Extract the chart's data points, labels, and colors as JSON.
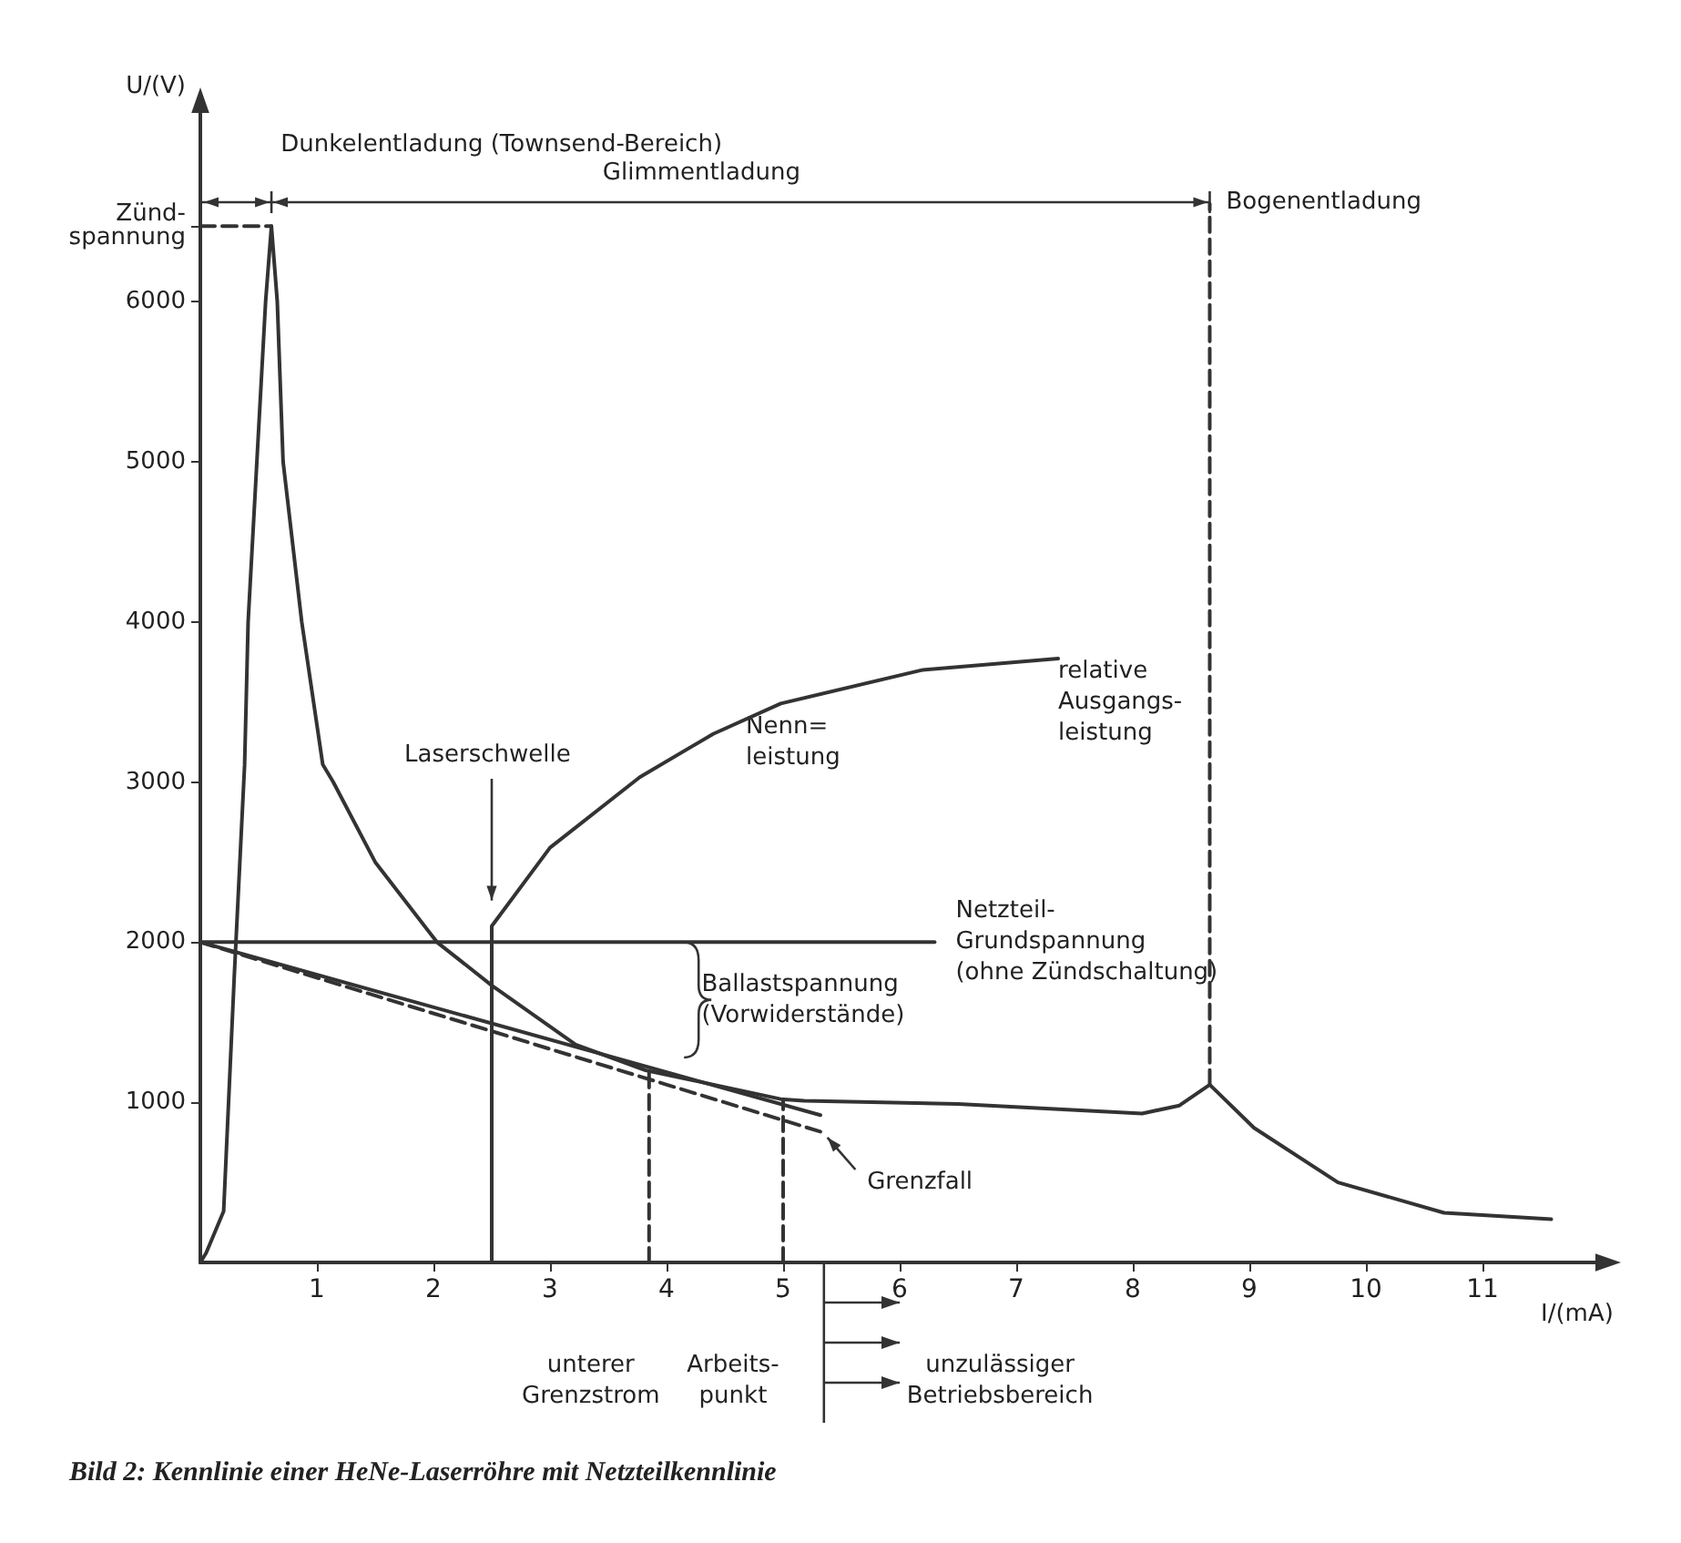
{
  "chart_data": {
    "type": "line",
    "title": "Bild 2: Kennlinie einer HeNe-Laserröhre mit Netzteilkennlinie",
    "xlabel": "I/(mA)",
    "ylabel": "U/(V)",
    "xlim": [
      0,
      12
    ],
    "ylim": [
      0,
      7200
    ],
    "xticks": [
      1,
      2,
      3,
      4,
      5,
      6,
      7,
      8,
      9,
      10,
      11
    ],
    "yticks": [
      1000,
      2000,
      3000,
      4000,
      5000,
      6000,
      {
        "value": 6470,
        "label": "Zünd-\nspannung"
      }
    ],
    "marker": "none",
    "line_style": "solid",
    "grid": false,
    "series": [
      {
        "color": "#333333",
        "x": [
          0,
          0.05,
          0.2,
          0.29,
          0.38,
          0.41,
          0.56,
          0.61,
          0.66,
          0.71,
          0.87,
          1.05,
          1.14,
          1.5,
          2.03,
          2.5,
          3.22,
          3.82,
          4.98,
          5.18,
          6.5,
          8.08,
          8.4,
          8.66,
          9.04,
          9.76,
          10.67,
          11.59
        ],
        "values": [
          0,
          60,
          320,
          1770,
          3110,
          4000,
          6000,
          6470,
          6000,
          5000,
          4000,
          3110,
          3000,
          2500,
          2000,
          1730,
          1360,
          1200,
          1020,
          1010,
          990,
          930,
          980,
          1110,
          840,
          500,
          310,
          270
        ]
      },
      {
        "color": "#333333",
        "x": [
          0,
          6.3
        ],
        "values": [
          2000,
          2000
        ]
      },
      {
        "color": "#333333",
        "x": [
          0,
          5.32
        ],
        "values": [
          2000,
          920
        ]
      },
      {
        "color": "#333333",
        "line_style": "dashed",
        "x": [
          0,
          5.35
        ],
        "values": [
          2000,
          810
        ]
      },
      {
        "color": "#333333",
        "x": [
          2.5,
          2.5,
          3,
          3.77,
          4.4,
          4.98,
          6.2,
          7.36
        ],
        "values": [
          0,
          2100,
          2590,
          3030,
          3300,
          3490,
          3700,
          3770
        ]
      },
      {
        "color": "#333333",
        "line_style": "dashed",
        "x": [
          0,
          0.61
        ],
        "values": [
          6470,
          6470
        ]
      },
      {
        "color": "#333333",
        "line_style": "dashed",
        "x": [
          3.85,
          3.85
        ],
        "values": [
          0,
          1200
        ]
      },
      {
        "color": "#333333",
        "line_style": "dashed",
        "x": [
          5,
          5
        ],
        "values": [
          0,
          1020
        ]
      },
      {
        "color": "#333333",
        "line_style": "dashed",
        "x": [
          8.66,
          8.66
        ],
        "values": [
          1110,
          6610
        ]
      }
    ],
    "annotations": [
      "Dunkelentladung (Townsend-Bereich)",
      "Laserschwelle",
      "Nenn=\nleistung",
      "relative\nAusgangs-\nleistung",
      "Netzteil-\nGrundspannung\n(ohne Zündschaltung)",
      "Ballastspannung\n(Vorwiderstände)",
      "Grenzfall",
      "unterer\nGrenzstrom",
      "Arbeits-\npunkt",
      "unzulässiger\nBetriebsbereich",
      "Glimmentladung",
      "Bogenentladung"
    ]
  }
}
